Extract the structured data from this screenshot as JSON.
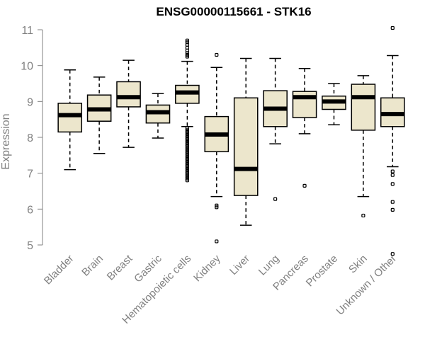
{
  "chart_data": {
    "type": "boxplot",
    "title": "ENSG00000115661 - STK16",
    "xlabel": "",
    "ylabel": "Expression",
    "ylim": [
      4.7,
      11.1
    ],
    "yticks": [
      5,
      6,
      7,
      8,
      9,
      10,
      11
    ],
    "box_fill": "#ece6cc",
    "categories": [
      "Bladder",
      "Brain",
      "Breast",
      "Gastric",
      "Hematopoietic cells",
      "Kidney",
      "Liver",
      "Lung",
      "Pancreas",
      "Prostate",
      "Skin",
      "Unknown / Other"
    ],
    "boxes": [
      {
        "min": 7.1,
        "q1": 8.15,
        "median": 8.62,
        "q3": 8.95,
        "max": 9.88,
        "outliers": []
      },
      {
        "min": 7.55,
        "q1": 8.45,
        "median": 8.78,
        "q3": 9.18,
        "max": 9.68,
        "outliers": []
      },
      {
        "min": 7.72,
        "q1": 8.85,
        "median": 9.12,
        "q3": 9.55,
        "max": 10.15,
        "outliers": []
      },
      {
        "min": 7.98,
        "q1": 8.4,
        "median": 8.7,
        "q3": 8.9,
        "max": 9.22,
        "outliers": []
      },
      {
        "min": 8.3,
        "q1": 8.95,
        "median": 9.25,
        "q3": 9.45,
        "max": 10.12,
        "outliers": [
          10.25,
          10.3,
          10.35,
          10.42,
          10.5,
          10.58,
          10.65,
          10.7,
          6.8,
          6.85,
          6.9,
          6.95,
          7.0,
          7.05,
          7.1,
          7.15,
          7.2,
          7.25,
          7.3,
          7.35,
          7.4,
          7.45,
          7.5,
          7.55,
          7.6,
          7.65,
          7.7,
          7.75,
          7.8,
          7.85,
          7.9,
          7.95,
          8.0,
          8.05,
          8.1,
          8.15,
          8.2,
          8.25
        ]
      },
      {
        "min": 6.35,
        "q1": 7.6,
        "median": 8.08,
        "q3": 8.58,
        "max": 9.95,
        "outliers": [
          10.3,
          6.1,
          6.05,
          5.1
        ]
      },
      {
        "min": 5.55,
        "q1": 6.38,
        "median": 7.12,
        "q3": 9.1,
        "max": 10.2,
        "outliers": []
      },
      {
        "min": 7.82,
        "q1": 8.3,
        "median": 8.8,
        "q3": 9.3,
        "max": 10.2,
        "outliers": [
          6.28
        ]
      },
      {
        "min": 8.1,
        "q1": 8.55,
        "median": 9.12,
        "q3": 9.28,
        "max": 9.92,
        "outliers": [
          6.65
        ]
      },
      {
        "min": 8.35,
        "q1": 8.78,
        "median": 9.0,
        "q3": 9.15,
        "max": 9.5,
        "outliers": []
      },
      {
        "min": 6.35,
        "q1": 8.2,
        "median": 9.12,
        "q3": 9.48,
        "max": 9.72,
        "outliers": [
          5.82
        ]
      },
      {
        "min": 7.18,
        "q1": 8.3,
        "median": 8.65,
        "q3": 9.1,
        "max": 10.28,
        "outliers": [
          11.05,
          7.05,
          6.95,
          6.7,
          6.2,
          5.98,
          4.75
        ]
      }
    ]
  }
}
